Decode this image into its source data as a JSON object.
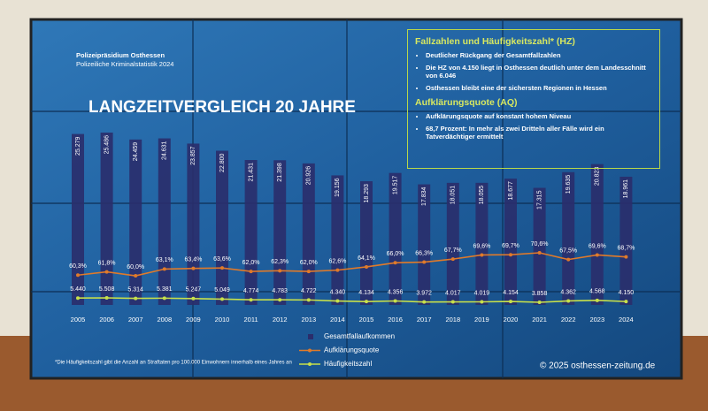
{
  "header": {
    "org": "Polizeipräsidium Osthessen",
    "subtitle": "Polizeiliche Kriminalstatistik 2024"
  },
  "info_box": {
    "sections": [
      {
        "heading": "Fallzahlen und Häufigkeitszahl* (HZ)",
        "items": [
          "Deutlicher Rückgang der Gesamtfallzahlen",
          "Die HZ von 4.150 liegt in Osthessen deutlich unter dem Landesschnitt von 6.046",
          "Osthessen bleibt eine der sichersten Regionen in Hessen"
        ]
      },
      {
        "heading": "Aufklärungsquote (AQ)",
        "items": [
          "Aufklärungsquote auf konstant hohem Niveau",
          "68,7 Prozent: In mehr als zwei Dritteln aller Fälle wird ein Tatverdächtiger ermittelt"
        ]
      }
    ]
  },
  "footnote": "*Die Häufigkeitszahl gibt die Anzahl an Straftaten pro 100.000 Einwohnern innerhalb eines Jahres an",
  "copyright": "© 2025 osthessen-zeitung.de",
  "chart_data": {
    "type": "bar",
    "title": "LANGZEITVERGLEICH 20 JAHRE",
    "categories": [
      "2005",
      "2006",
      "2007",
      "2008",
      "2009",
      "2010",
      "2011",
      "2012",
      "2013",
      "2014",
      "2015",
      "2016",
      "2017",
      "2018",
      "2019",
      "2020",
      "2021",
      "2022",
      "2023",
      "2024"
    ],
    "series": [
      {
        "name": "Gesamtfallaufkommen",
        "type": "bar",
        "color": "#2a2d6b",
        "values": [
          25279,
          25486,
          24459,
          24631,
          23857,
          22800,
          21431,
          21398,
          20926,
          19156,
          18293,
          19517,
          17834,
          18051,
          18055,
          18677,
          17315,
          19635,
          20823,
          18961
        ],
        "value_labels": [
          "25.279",
          "25.486",
          "24.459",
          "24.631",
          "23.857",
          "22.800",
          "21.431",
          "21.398",
          "20.926",
          "19.156",
          "18.293",
          "19.517",
          "17.834",
          "18.051",
          "18.055",
          "18.677",
          "17.315",
          "19.635",
          "20.823",
          "18.961"
        ]
      },
      {
        "name": "Aufklärungsquote",
        "type": "line",
        "color": "#e07a2a",
        "values": [
          60.3,
          61.8,
          60.0,
          63.1,
          63.4,
          63.6,
          62.0,
          62.3,
          62.0,
          62.6,
          64.1,
          66.0,
          66.3,
          67.7,
          69.6,
          69.7,
          70.6,
          67.5,
          69.6,
          68.7
        ],
        "value_labels": [
          "60,3%",
          "61,8%",
          "60,0%",
          "63,1%",
          "63,4%",
          "63,6%",
          "62,0%",
          "62,3%",
          "62,0%",
          "62,6%",
          "64,1%",
          "66,0%",
          "66,3%",
          "67,7%",
          "69,6%",
          "69,7%",
          "70,6%",
          "67,5%",
          "69,6%",
          "68,7%"
        ]
      },
      {
        "name": "Häufigkeitszahl",
        "type": "line",
        "color": "#c8e04a",
        "values": [
          5440,
          5508,
          5314,
          5381,
          5247,
          5049,
          4774,
          4783,
          4722,
          4340,
          4134,
          4356,
          3972,
          4017,
          4019,
          4154,
          3858,
          4362,
          4568,
          4150
        ],
        "value_labels": [
          "5.440",
          "5.508",
          "5.314",
          "5.381",
          "5.247",
          "5.049",
          "4.774",
          "4.783",
          "4.722",
          "4.340",
          "4.134",
          "4.356",
          "3.972",
          "4.017",
          "4.019",
          "4.154",
          "3.858",
          "4.362",
          "4.568",
          "4.150"
        ]
      }
    ]
  }
}
